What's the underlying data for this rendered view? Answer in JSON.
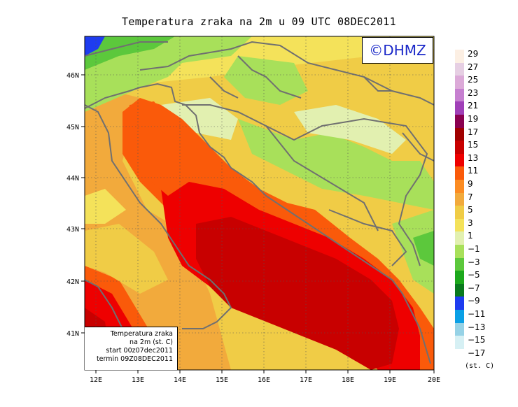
{
  "title": "Temperatura zraka na 2m u 09 UTC 08DEC2011",
  "logo": "©DHMZ",
  "lat_labels": [
    "46N",
    "45N",
    "44N",
    "43N",
    "42N",
    "41N"
  ],
  "lon_labels": [
    "12E",
    "13E",
    "14E",
    "15E",
    "16E",
    "17E",
    "18E",
    "19E",
    "20E"
  ],
  "legend": {
    "labels": [
      "29",
      "27",
      "25",
      "23",
      "21",
      "19",
      "17",
      "15",
      "13",
      "11",
      "9",
      "7",
      "5",
      "3",
      "1",
      "−1",
      "−3",
      "−5",
      "−7",
      "−9",
      "−11",
      "−13",
      "−15",
      "−17"
    ],
    "colors": [
      "#fcefe3",
      "#e6cfe3",
      "#dcaad8",
      "#c680d0",
      "#a040b8",
      "#8a0050",
      "#a00000",
      "#c80000",
      "#ee0000",
      "#fa5a0a",
      "#fc8c22",
      "#f2aa3c",
      "#f0cc46",
      "#f4e25a",
      "#e2f0b0",
      "#a8e05a",
      "#5cc83c",
      "#1ca81c",
      "#0a7a1e",
      "#1e3cf0",
      "#0aa0e6",
      "#96d2e6",
      "#d6f0f4",
      "#ffffff"
    ],
    "units": "(st. C)"
  },
  "infobox": {
    "line1": "Temperatura zraka",
    "line2": "na 2m (st. C)",
    "line3": "start 00z07dec2011",
    "line4": "termin 09Z08DEC2011"
  },
  "colors": {
    "sea_warm": "#c80000",
    "sea_hot": "#ee0000",
    "coast_orange": "#fa5a0a",
    "inland_yellow": "#f0cc46",
    "highland_green": "#a8e05a",
    "border_gray": "#707070"
  }
}
